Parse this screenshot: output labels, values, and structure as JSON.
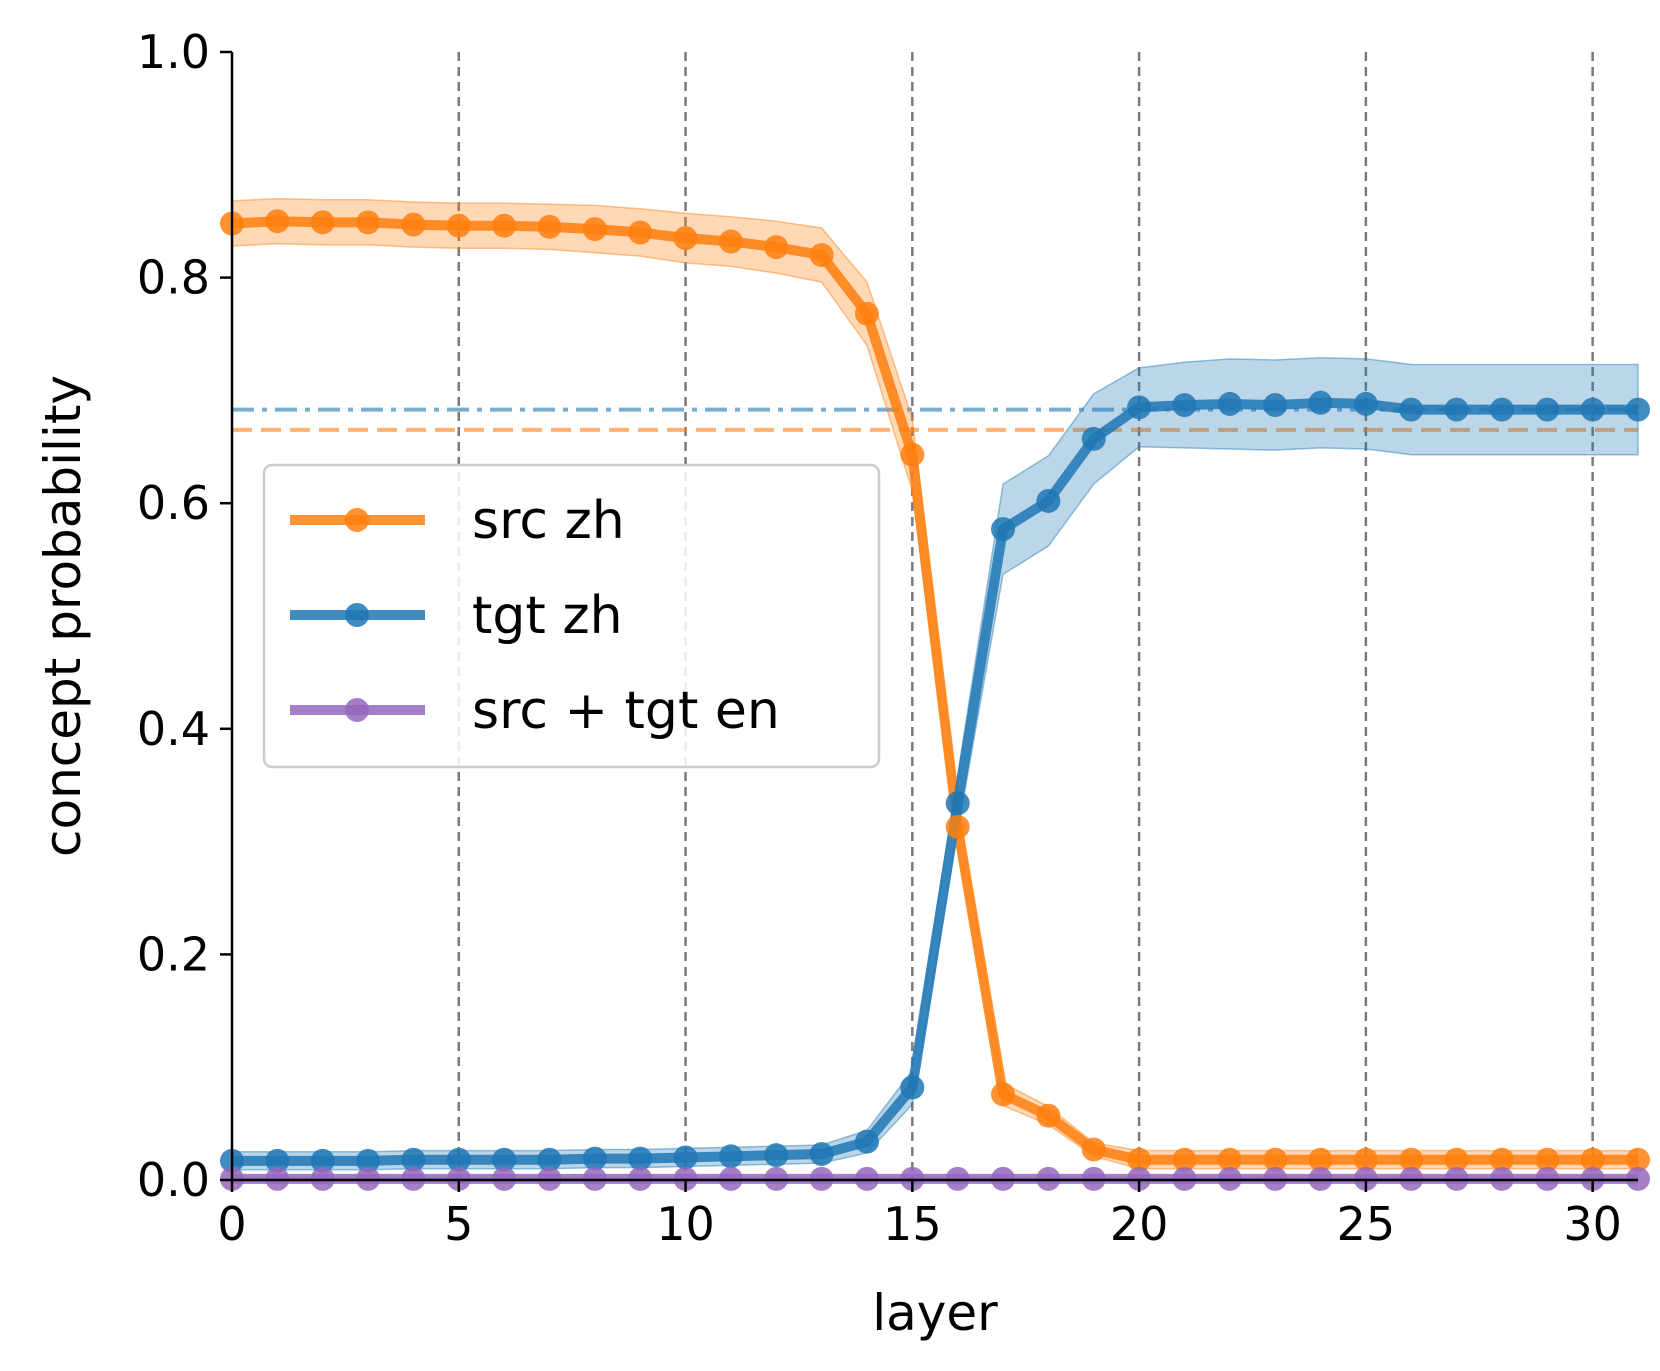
{
  "chart_data": {
    "type": "line",
    "xlabel": "layer",
    "ylabel": "concept probability",
    "xlim": [
      0,
      31
    ],
    "ylim": [
      0,
      1
    ],
    "x_ticks": [
      0,
      5,
      10,
      15,
      20,
      25,
      30
    ],
    "y_ticks": [
      0.0,
      0.2,
      0.4,
      0.6,
      0.8,
      1.0
    ],
    "vertical_dashed_lines": [
      5,
      10,
      15,
      20,
      25,
      30
    ],
    "legend_position": "center-left",
    "reference_lines": [
      {
        "y": 0.683,
        "style": "dashdot",
        "color": "#1f77b4"
      },
      {
        "y": 0.665,
        "style": "dashed",
        "color": "#ff7f0e"
      }
    ],
    "x": [
      0,
      1,
      2,
      3,
      4,
      5,
      6,
      7,
      8,
      9,
      10,
      11,
      12,
      13,
      14,
      15,
      16,
      17,
      18,
      19,
      20,
      21,
      22,
      23,
      24,
      25,
      26,
      27,
      28,
      29,
      30,
      31
    ],
    "series": [
      {
        "name": "src zh",
        "color": "#ff7f0e",
        "values": [
          0.848,
          0.85,
          0.849,
          0.849,
          0.847,
          0.846,
          0.846,
          0.845,
          0.843,
          0.84,
          0.835,
          0.832,
          0.827,
          0.82,
          0.768,
          0.643,
          0.313,
          0.076,
          0.057,
          0.027,
          0.018,
          0.018,
          0.018,
          0.018,
          0.018,
          0.018,
          0.018,
          0.018,
          0.018,
          0.018,
          0.018,
          0.018
        ],
        "band": [
          0.02,
          0.02,
          0.02,
          0.02,
          0.02,
          0.02,
          0.02,
          0.02,
          0.021,
          0.021,
          0.022,
          0.022,
          0.023,
          0.024,
          0.028,
          0.032,
          0.02,
          0.01,
          0.008,
          0.006,
          0.008,
          0.008,
          0.008,
          0.008,
          0.008,
          0.008,
          0.008,
          0.008,
          0.008,
          0.008,
          0.008,
          0.008
        ]
      },
      {
        "name": "tgt zh",
        "color": "#1f77b4",
        "values": [
          0.017,
          0.017,
          0.017,
          0.017,
          0.018,
          0.018,
          0.018,
          0.018,
          0.019,
          0.019,
          0.02,
          0.021,
          0.022,
          0.023,
          0.034,
          0.082,
          0.334,
          0.577,
          0.602,
          0.657,
          0.685,
          0.687,
          0.688,
          0.687,
          0.689,
          0.688,
          0.683,
          0.683,
          0.683,
          0.683,
          0.683,
          0.683
        ],
        "band": [
          0.008,
          0.008,
          0.008,
          0.008,
          0.008,
          0.008,
          0.008,
          0.008,
          0.008,
          0.008,
          0.008,
          0.008,
          0.008,
          0.008,
          0.01,
          0.015,
          0.025,
          0.04,
          0.04,
          0.04,
          0.035,
          0.038,
          0.04,
          0.04,
          0.04,
          0.04,
          0.04,
          0.04,
          0.04,
          0.04,
          0.04,
          0.04
        ]
      },
      {
        "name": "src + tgt en",
        "color": "#9467bd",
        "values": [
          0.001,
          0.001,
          0.001,
          0.001,
          0.001,
          0.001,
          0.001,
          0.001,
          0.001,
          0.001,
          0.001,
          0.001,
          0.001,
          0.001,
          0.001,
          0.001,
          0.001,
          0.001,
          0.001,
          0.001,
          0.001,
          0.001,
          0.001,
          0.001,
          0.001,
          0.001,
          0.001,
          0.001,
          0.001,
          0.001,
          0.001,
          0.001
        ],
        "band": [
          0.001,
          0.001,
          0.001,
          0.001,
          0.001,
          0.001,
          0.001,
          0.001,
          0.001,
          0.001,
          0.001,
          0.001,
          0.001,
          0.001,
          0.001,
          0.001,
          0.001,
          0.001,
          0.001,
          0.001,
          0.001,
          0.001,
          0.001,
          0.001,
          0.001,
          0.001,
          0.001,
          0.001,
          0.001,
          0.001,
          0.001,
          0.001
        ]
      }
    ]
  }
}
